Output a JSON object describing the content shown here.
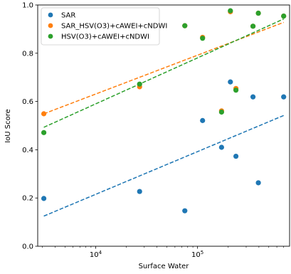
{
  "chart_data": {
    "type": "scatter",
    "xlabel": "Surface Water",
    "ylabel": "IoU Score",
    "xscale": "log",
    "xlim": [
      2700,
      800000
    ],
    "ylim": [
      0.0,
      1.0
    ],
    "grid": false,
    "legend_position": "top-left",
    "xticks": [
      {
        "value": 10000,
        "base": "10",
        "exp": "4"
      },
      {
        "value": 100000,
        "base": "10",
        "exp": "5"
      }
    ],
    "yticks": [
      {
        "value": 0.0,
        "label": "0.0"
      },
      {
        "value": 0.2,
        "label": "0.2"
      },
      {
        "value": 0.4,
        "label": "0.4"
      },
      {
        "value": 0.6,
        "label": "0.6"
      },
      {
        "value": 0.8,
        "label": "0.8"
      },
      {
        "value": 1.0,
        "label": "1.0"
      }
    ],
    "series": [
      {
        "name": "SAR",
        "color": "#1f77b4",
        "points": [
          [
            3100,
            0.198
          ],
          [
            27000,
            0.227
          ],
          [
            75000,
            0.147
          ],
          [
            112000,
            0.521
          ],
          [
            172000,
            0.41
          ],
          [
            210000,
            0.681
          ],
          [
            238000,
            0.373
          ],
          [
            350000,
            0.619
          ],
          [
            395000,
            0.263
          ],
          [
            700000,
            0.619
          ]
        ],
        "trend": {
          "x": [
            3100,
            700000
          ],
          "y": [
            0.125,
            0.542
          ]
        }
      },
      {
        "name": "SAR_HSV(O3)+cAWEI+cNDWI",
        "color": "#ff7f0e",
        "points": [
          [
            3100,
            0.549
          ],
          [
            27000,
            0.661
          ],
          [
            75000,
            0.914
          ],
          [
            112000,
            0.866
          ],
          [
            172000,
            0.561
          ],
          [
            210000,
            0.972
          ],
          [
            238000,
            0.654
          ],
          [
            350000,
            0.912
          ],
          [
            395000,
            0.966
          ],
          [
            700000,
            0.954
          ]
        ],
        "trend": {
          "x": [
            3100,
            700000
          ],
          "y": [
            0.549,
            0.928
          ]
        }
      },
      {
        "name": "HSV(O3)+cAWEI+cNDWI",
        "color": "#2ca02c",
        "points": [
          [
            3100,
            0.471
          ],
          [
            27000,
            0.672
          ],
          [
            75000,
            0.914
          ],
          [
            112000,
            0.862
          ],
          [
            172000,
            0.556
          ],
          [
            210000,
            0.976
          ],
          [
            238000,
            0.647
          ],
          [
            350000,
            0.912
          ],
          [
            395000,
            0.966
          ],
          [
            700000,
            0.954
          ]
        ],
        "trend": {
          "x": [
            3100,
            700000
          ],
          "y": [
            0.493,
            0.942
          ]
        }
      }
    ]
  }
}
